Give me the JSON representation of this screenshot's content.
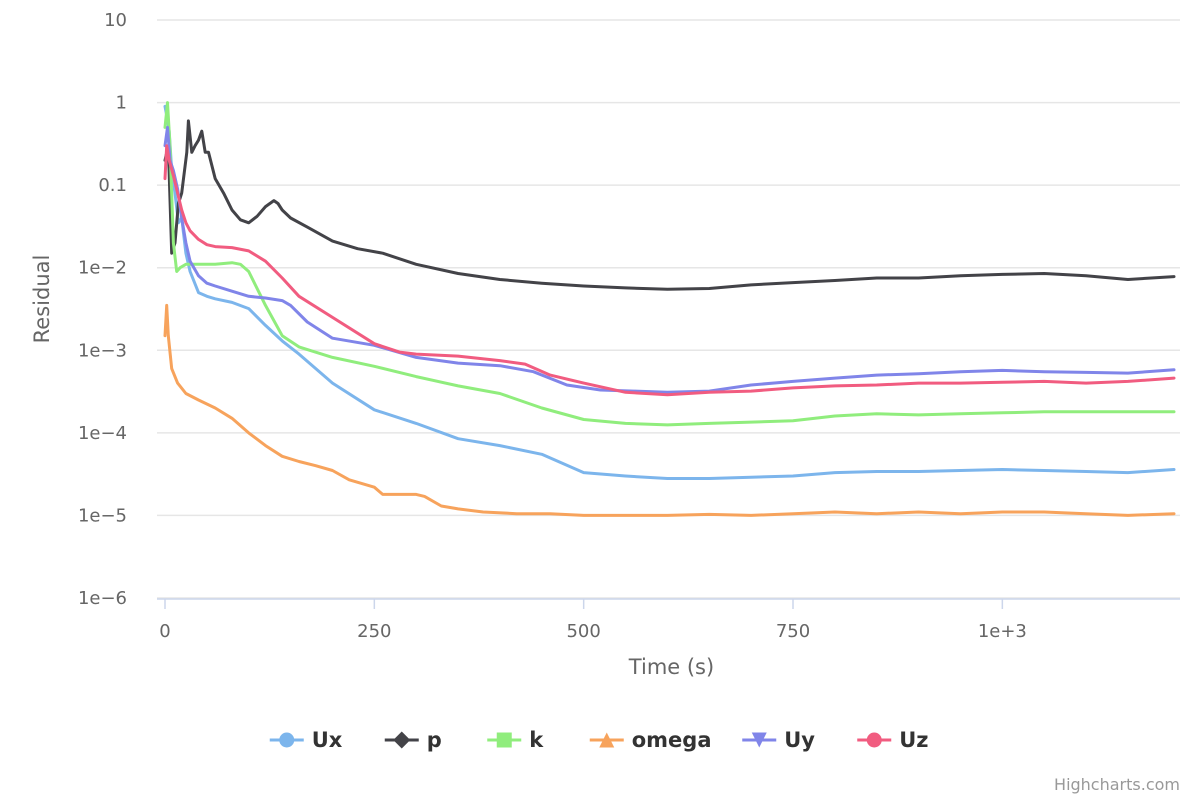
{
  "chart_data": {
    "type": "line",
    "title": "",
    "xlabel": "Time (s)",
    "ylabel": "Residual",
    "y_scale": "log",
    "xlim": [
      0,
      1205
    ],
    "ylim": [
      1e-06,
      10
    ],
    "x_ticks": [
      {
        "value": 0,
        "label": "0"
      },
      {
        "value": 250,
        "label": "250"
      },
      {
        "value": 500,
        "label": "500"
      },
      {
        "value": 750,
        "label": "750"
      },
      {
        "value": 1000,
        "label": "1e+3"
      }
    ],
    "y_ticks": [
      {
        "value": 10,
        "label": "10"
      },
      {
        "value": 1,
        "label": "1"
      },
      {
        "value": 0.1,
        "label": "0.1"
      },
      {
        "value": 0.01,
        "label": "1e−2"
      },
      {
        "value": 0.001,
        "label": "1e−3"
      },
      {
        "value": 0.0001,
        "label": "1e−4"
      },
      {
        "value": 1e-05,
        "label": "1e−5"
      },
      {
        "value": 1e-06,
        "label": "1e−6"
      }
    ],
    "grid": true,
    "legend_position": "bottom-center",
    "credits": "Highcharts.com",
    "series": [
      {
        "name": "Ux",
        "color": "#7cb5ec",
        "marker": "circle",
        "x": [
          0,
          2,
          5,
          8,
          12,
          16,
          20,
          25,
          30,
          40,
          50,
          60,
          80,
          100,
          120,
          140,
          160,
          200,
          250,
          300,
          350,
          400,
          450,
          500,
          550,
          600,
          650,
          700,
          750,
          800,
          850,
          900,
          950,
          1000,
          1050,
          1100,
          1150,
          1205
        ],
        "y": [
          0.9,
          0.7,
          0.45,
          0.15,
          0.08,
          0.035,
          0.04,
          0.015,
          0.009,
          0.005,
          0.0045,
          0.0042,
          0.0038,
          0.0032,
          0.002,
          0.0013,
          0.0009,
          0.0004,
          0.00019,
          0.00013,
          8.5e-05,
          7e-05,
          5.5e-05,
          3.3e-05,
          3e-05,
          2.8e-05,
          2.8e-05,
          2.9e-05,
          3e-05,
          3.3e-05,
          3.4e-05,
          3.4e-05,
          3.5e-05,
          3.6e-05,
          3.5e-05,
          3.4e-05,
          3.3e-05,
          3.6e-05
        ]
      },
      {
        "name": "p",
        "color": "#434348",
        "marker": "diamond",
        "x": [
          0,
          4,
          8,
          12,
          16,
          20,
          26,
          28,
          32,
          36,
          40,
          44,
          48,
          52,
          60,
          70,
          80,
          90,
          100,
          110,
          120,
          130,
          135,
          140,
          150,
          170,
          200,
          230,
          260,
          300,
          350,
          400,
          450,
          500,
          550,
          600,
          650,
          700,
          750,
          800,
          850,
          900,
          950,
          1000,
          1050,
          1100,
          1150,
          1205
        ],
        "y": [
          0.2,
          0.3,
          0.015,
          0.02,
          0.06,
          0.08,
          0.25,
          0.6,
          0.25,
          0.3,
          0.35,
          0.45,
          0.25,
          0.25,
          0.12,
          0.08,
          0.05,
          0.038,
          0.035,
          0.042,
          0.055,
          0.065,
          0.06,
          0.05,
          0.04,
          0.031,
          0.021,
          0.017,
          0.015,
          0.011,
          0.0085,
          0.0072,
          0.0065,
          0.006,
          0.0057,
          0.0055,
          0.0056,
          0.0062,
          0.0066,
          0.007,
          0.0075,
          0.0075,
          0.008,
          0.0083,
          0.0085,
          0.008,
          0.0072,
          0.0078
        ]
      },
      {
        "name": "k",
        "color": "#90ed7d",
        "marker": "square",
        "x": [
          0,
          3,
          6,
          10,
          14,
          18,
          25,
          40,
          60,
          80,
          90,
          100,
          120,
          140,
          160,
          200,
          250,
          300,
          350,
          400,
          450,
          500,
          550,
          600,
          650,
          700,
          750,
          800,
          850,
          900,
          950,
          1000,
          1050,
          1100,
          1150,
          1205
        ],
        "y": [
          0.5,
          1,
          0.3,
          0.02,
          0.009,
          0.01,
          0.011,
          0.011,
          0.011,
          0.0115,
          0.011,
          0.009,
          0.0035,
          0.0015,
          0.0011,
          0.00082,
          0.00064,
          0.00048,
          0.00037,
          0.0003,
          0.0002,
          0.000145,
          0.00013,
          0.000125,
          0.00013,
          0.000135,
          0.00014,
          0.00016,
          0.00017,
          0.000165,
          0.00017,
          0.000175,
          0.00018,
          0.00018,
          0.00018,
          0.00018
        ]
      },
      {
        "name": "omega",
        "color": "#f7a35c",
        "marker": "triangle",
        "x": [
          0,
          2,
          4,
          8,
          15,
          25,
          40,
          60,
          80,
          100,
          120,
          140,
          160,
          180,
          200,
          220,
          250,
          260,
          280,
          300,
          310,
          330,
          350,
          380,
          420,
          460,
          500,
          550,
          600,
          650,
          700,
          750,
          800,
          850,
          900,
          950,
          1000,
          1050,
          1100,
          1150,
          1205
        ],
        "y": [
          0.0015,
          0.0035,
          0.0015,
          0.0006,
          0.0004,
          0.0003,
          0.00025,
          0.0002,
          0.00015,
          0.0001,
          7e-05,
          5.2e-05,
          4.5e-05,
          4e-05,
          3.5e-05,
          2.7e-05,
          2.2e-05,
          1.8e-05,
          1.8e-05,
          1.8e-05,
          1.7e-05,
          1.3e-05,
          1.2e-05,
          1.1e-05,
          1.05e-05,
          1.05e-05,
          1e-05,
          1e-05,
          1e-05,
          1.03e-05,
          1e-05,
          1.05e-05,
          1.1e-05,
          1.05e-05,
          1.1e-05,
          1.05e-05,
          1.1e-05,
          1.1e-05,
          1.05e-05,
          1e-05,
          1.05e-05
        ]
      },
      {
        "name": "Uy",
        "color": "#8085e9",
        "marker": "triangle-down",
        "x": [
          0,
          3,
          6,
          10,
          15,
          20,
          25,
          30,
          40,
          50,
          60,
          80,
          100,
          120,
          140,
          150,
          170,
          200,
          250,
          300,
          350,
          400,
          440,
          480,
          520,
          560,
          600,
          650,
          700,
          750,
          800,
          850,
          900,
          950,
          1000,
          1050,
          1100,
          1150,
          1205
        ],
        "y": [
          0.3,
          0.5,
          0.2,
          0.15,
          0.09,
          0.04,
          0.02,
          0.012,
          0.008,
          0.0065,
          0.006,
          0.0052,
          0.0045,
          0.0043,
          0.004,
          0.0035,
          0.0022,
          0.0014,
          0.00115,
          0.00082,
          0.0007,
          0.00065,
          0.00055,
          0.00038,
          0.00033,
          0.00032,
          0.00031,
          0.00032,
          0.00038,
          0.00042,
          0.00046,
          0.0005,
          0.00052,
          0.00055,
          0.00057,
          0.00055,
          0.00054,
          0.00053,
          0.00058
        ]
      },
      {
        "name": "Uz",
        "color": "#f15c80",
        "marker": "circle",
        "x": [
          0,
          2,
          5,
          10,
          15,
          20,
          25,
          30,
          40,
          50,
          60,
          80,
          100,
          120,
          140,
          160,
          200,
          250,
          280,
          300,
          350,
          400,
          430,
          460,
          500,
          550,
          600,
          650,
          700,
          750,
          800,
          850,
          900,
          950,
          1000,
          1050,
          1100,
          1150,
          1205
        ],
        "y": [
          0.12,
          0.3,
          0.2,
          0.13,
          0.08,
          0.05,
          0.035,
          0.028,
          0.022,
          0.019,
          0.018,
          0.0175,
          0.016,
          0.012,
          0.0075,
          0.0045,
          0.0025,
          0.0012,
          0.00095,
          0.0009,
          0.00085,
          0.00075,
          0.00068,
          0.0005,
          0.0004,
          0.00031,
          0.00029,
          0.00031,
          0.00032,
          0.00035,
          0.00037,
          0.00038,
          0.0004,
          0.0004,
          0.00041,
          0.00042,
          0.0004,
          0.00042,
          0.00046
        ]
      }
    ]
  }
}
